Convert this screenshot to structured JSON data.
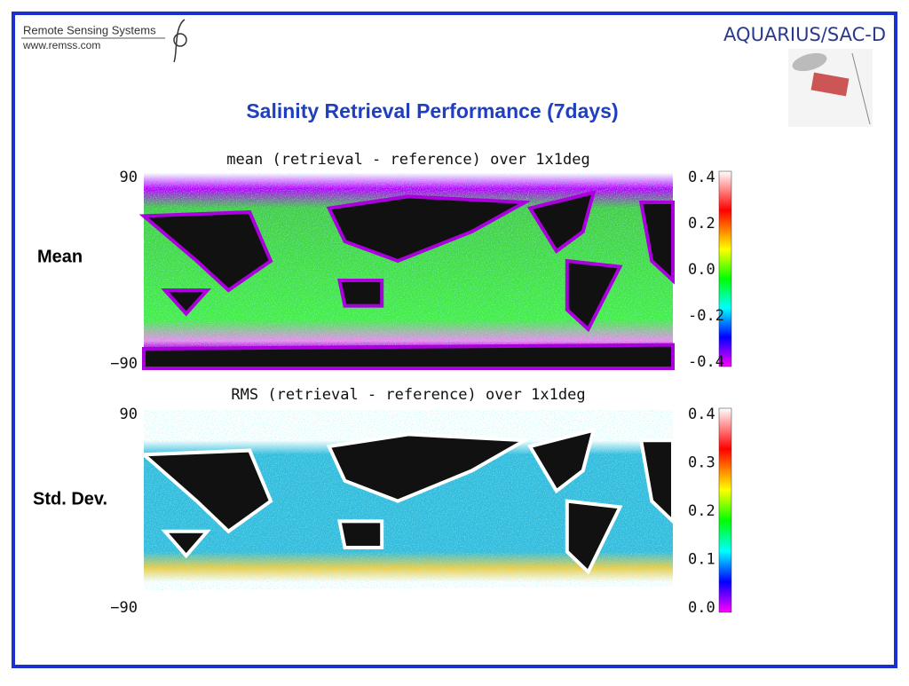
{
  "header": {
    "org_name": "Remote Sensing Systems",
    "org_url": "www.remss.com",
    "mission_logo": "AQUARIUS/SAC-D"
  },
  "title": "Salinity Retrieval Performance (7days)",
  "panels": [
    {
      "row_label": "Mean",
      "map_title": "mean (retrieval - reference) over 1x1deg",
      "lat_labels": [
        "90",
        "−90"
      ],
      "colorbar_labels": [
        "0.4",
        "0.2",
        "0.0",
        "-0.2",
        "-0.4"
      ]
    },
    {
      "row_label": "Std. Dev.",
      "map_title": "RMS (retrieval - reference) over 1x1deg",
      "lat_labels": [
        "90",
        "−90"
      ],
      "colorbar_labels": [
        "0.4",
        "0.3",
        "0.2",
        "0.1",
        "0.0"
      ]
    }
  ]
}
